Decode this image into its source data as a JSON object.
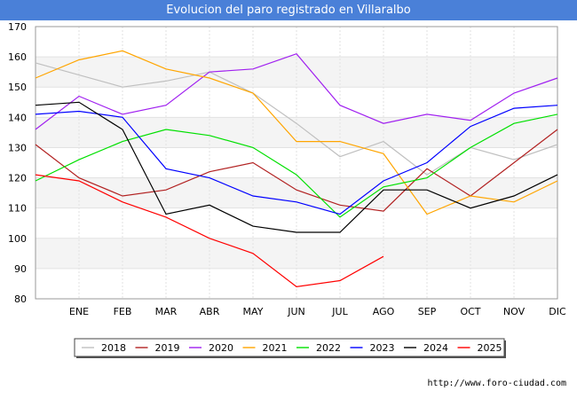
{
  "chart_data": {
    "type": "line",
    "title": "Evolucion del paro registrado en Villaralbo",
    "categories": [
      "",
      "ENE",
      "FEB",
      "MAR",
      "ABR",
      "MAY",
      "JUN",
      "JUL",
      "AGO",
      "SEP",
      "OCT",
      "NOV",
      "DIC"
    ],
    "ylim": [
      80,
      170
    ],
    "yticks": [
      80,
      90,
      100,
      110,
      120,
      130,
      140,
      150,
      160,
      170
    ],
    "grid": true,
    "legend_position": "bottom",
    "series": [
      {
        "name": "2018",
        "color": "#c0c0c0",
        "values": [
          158,
          154,
          150,
          152,
          155,
          148,
          138,
          127,
          132,
          121,
          130,
          126,
          131
        ]
      },
      {
        "name": "2019",
        "color": "#b22222",
        "values": [
          131,
          120,
          114,
          116,
          122,
          125,
          116,
          111,
          109,
          123,
          114,
          125,
          136
        ]
      },
      {
        "name": "2020",
        "color": "#a020f0",
        "values": [
          136,
          147,
          141,
          144,
          155,
          156,
          161,
          144,
          138,
          141,
          139,
          148,
          153
        ]
      },
      {
        "name": "2021",
        "color": "#ffa500",
        "values": [
          153,
          159,
          162,
          156,
          153,
          148,
          132,
          132,
          128,
          108,
          114,
          112,
          119
        ]
      },
      {
        "name": "2022",
        "color": "#00e000",
        "values": [
          119,
          126,
          132,
          136,
          134,
          130,
          121,
          107,
          117,
          120,
          130,
          138,
          141
        ]
      },
      {
        "name": "2023",
        "color": "#0000ff",
        "values": [
          141,
          142,
          140,
          123,
          120,
          114,
          112,
          108,
          119,
          125,
          137,
          143,
          144
        ]
      },
      {
        "name": "2024",
        "color": "#000000",
        "values": [
          144,
          145,
          136,
          108,
          111,
          104,
          102,
          102,
          116,
          116,
          110,
          114,
          121
        ]
      },
      {
        "name": "2025",
        "color": "#ff0000",
        "values": [
          121,
          119,
          112,
          107,
          100,
          95,
          84,
          86,
          94,
          null,
          null,
          null,
          null
        ]
      }
    ]
  },
  "footer": "http://www.foro-ciudad.com"
}
